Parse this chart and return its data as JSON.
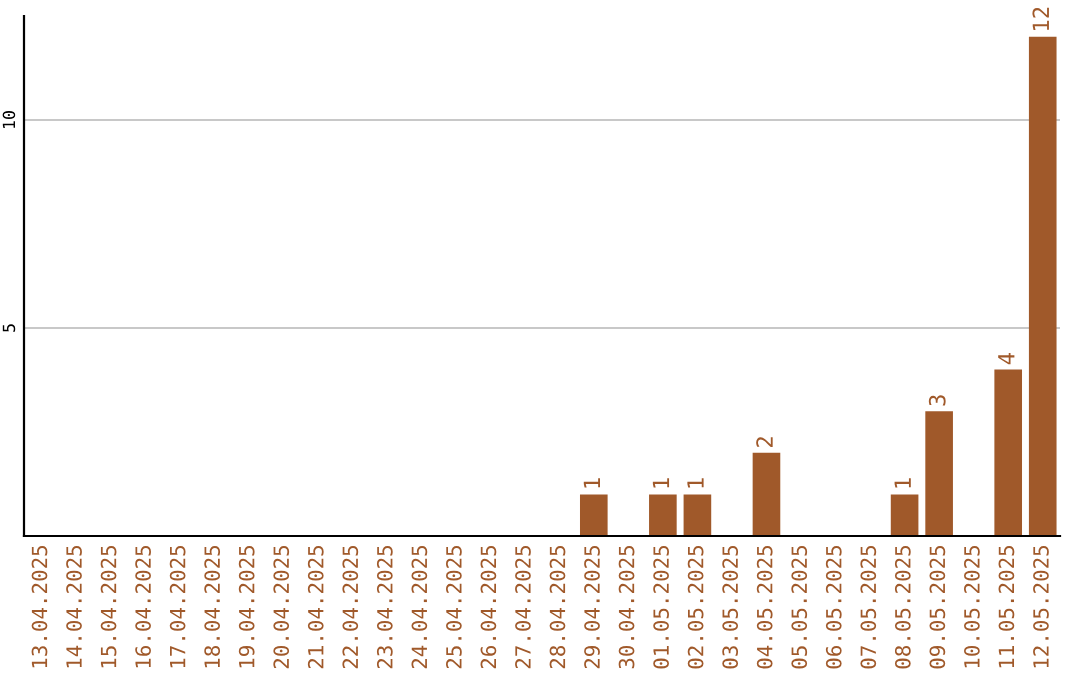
{
  "chart_data": {
    "type": "bar",
    "categories": [
      "13.04.2025",
      "14.04.2025",
      "15.04.2025",
      "16.04.2025",
      "17.04.2025",
      "18.04.2025",
      "19.04.2025",
      "20.04.2025",
      "21.04.2025",
      "22.04.2025",
      "23.04.2025",
      "24.04.2025",
      "25.04.2025",
      "26.04.2025",
      "27.04.2025",
      "28.04.2025",
      "29.04.2025",
      "30.04.2025",
      "01.05.2025",
      "02.05.2025",
      "03.05.2025",
      "04.05.2025",
      "05.05.2025",
      "06.05.2025",
      "07.05.2025",
      "08.05.2025",
      "09.05.2025",
      "10.05.2025",
      "11.05.2025",
      "12.05.2025"
    ],
    "values": [
      0,
      0,
      0,
      0,
      0,
      0,
      0,
      0,
      0,
      0,
      0,
      0,
      0,
      0,
      0,
      0,
      1,
      0,
      1,
      1,
      0,
      2,
      0,
      0,
      0,
      1,
      3,
      0,
      4,
      12
    ],
    "value_labels": [
      null,
      null,
      null,
      null,
      null,
      null,
      null,
      null,
      null,
      null,
      null,
      null,
      null,
      null,
      null,
      null,
      "1",
      null,
      "1",
      "1",
      null,
      "2",
      null,
      null,
      null,
      "1",
      "3",
      null,
      "4",
      "12"
    ],
    "color": "#a0592a",
    "ylim": [
      0,
      12.5
    ],
    "yticks": [
      5,
      10
    ],
    "grid": "y"
  }
}
